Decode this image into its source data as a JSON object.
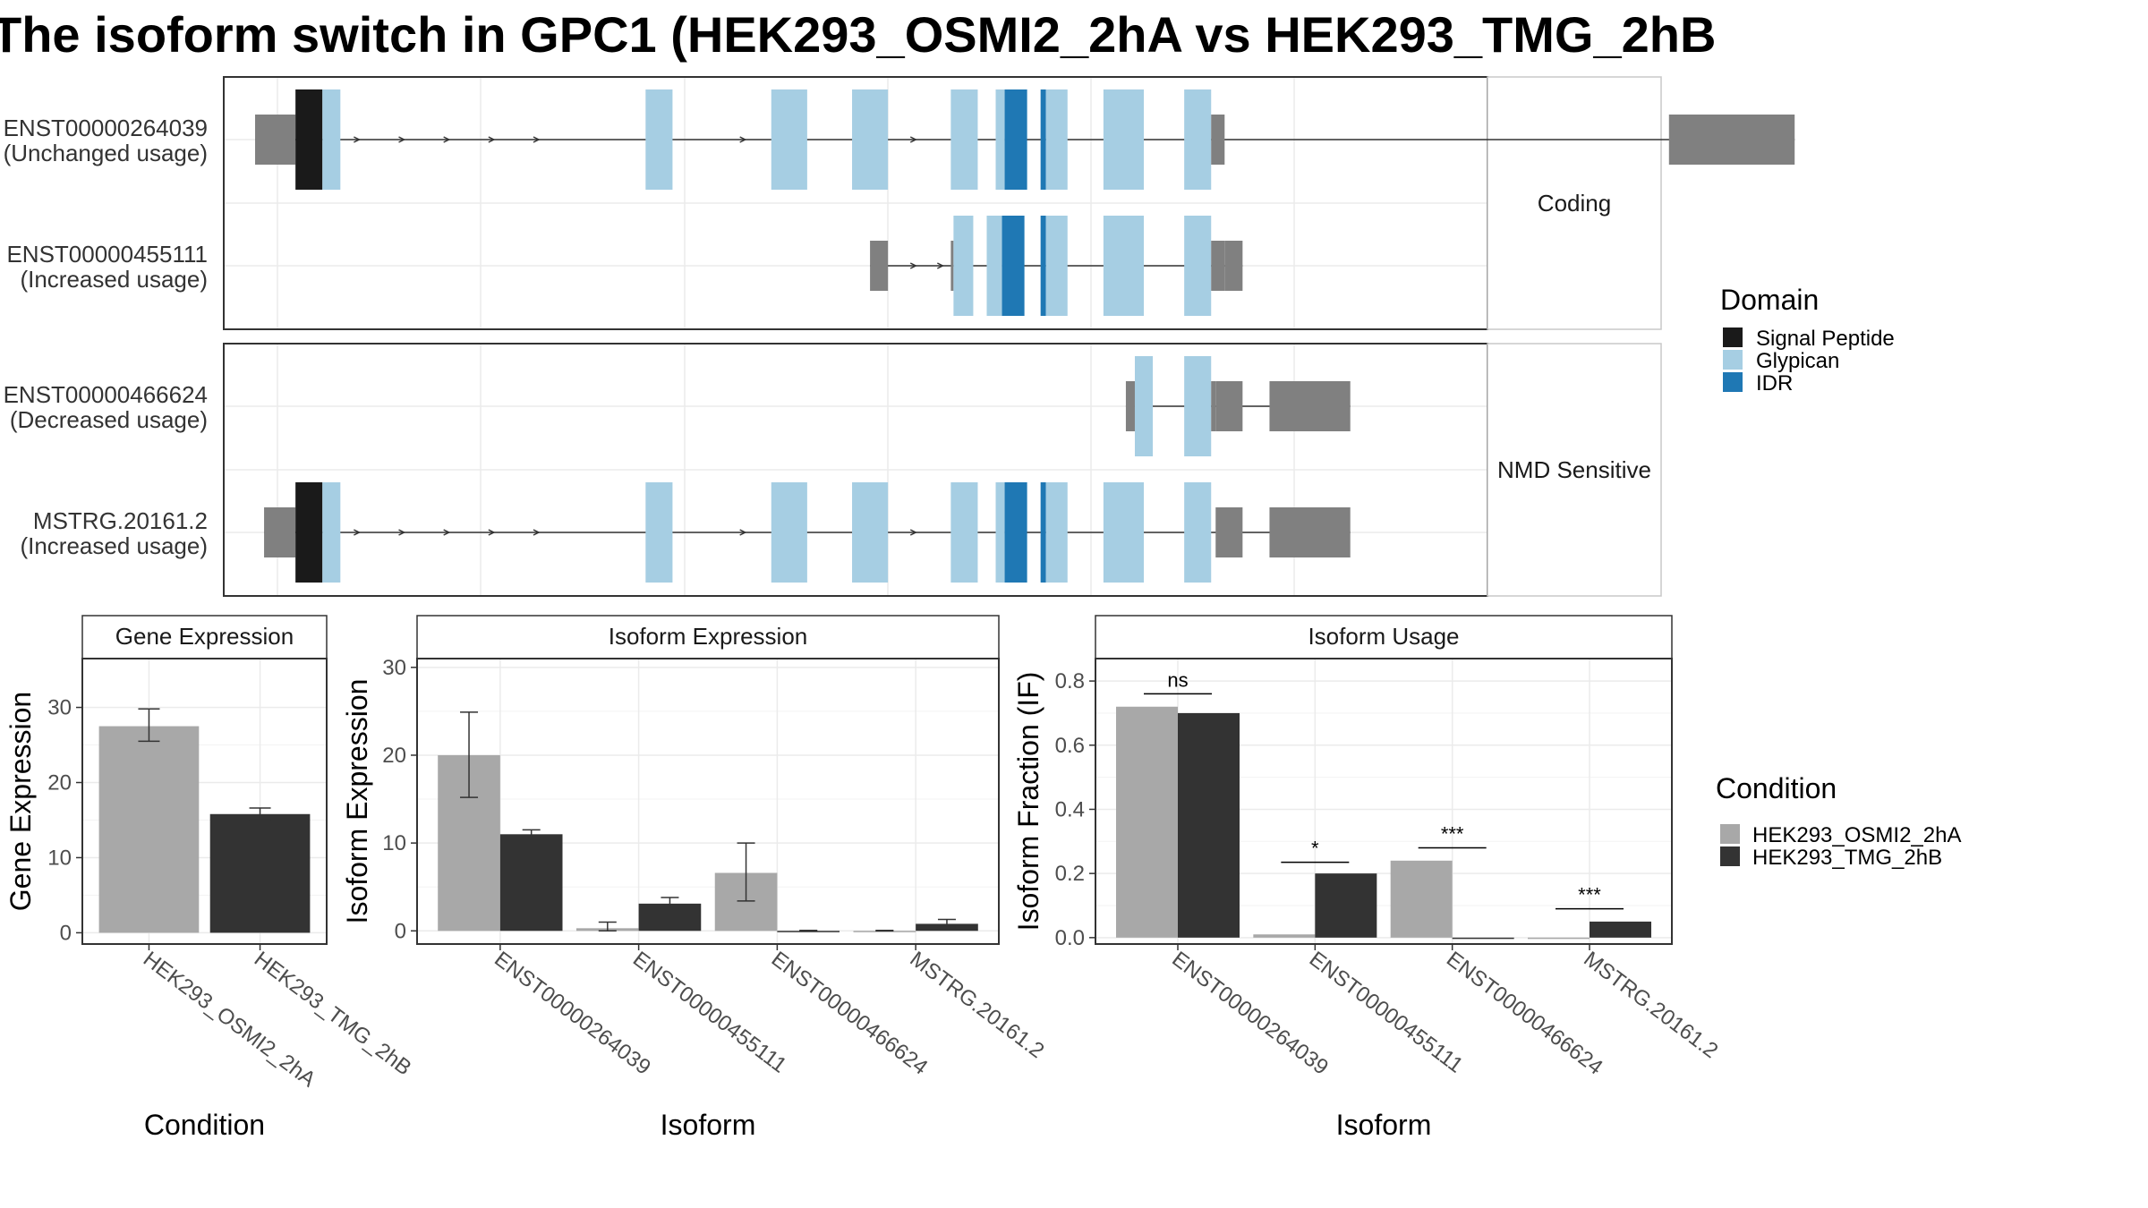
{
  "figure": {
    "title": "The isoform switch in GPC1 (HEK293_OSMI2_2hA vs HEK293_TMG_2hB"
  },
  "colors": {
    "utr": "#808080",
    "signal_peptide": "#1a1a1a",
    "glypican": "#a6cee3",
    "idr": "#1f78b4",
    "cond1": "#a8a8a8",
    "cond2": "#333333"
  },
  "structure": {
    "groups": [
      {
        "label": "Coding",
        "isoforms": [
          {
            "id": "ENST00000264039",
            "usage": "(Unchanged usage)",
            "utr": [
              [
                0.5,
                5.0
              ],
              [
                158.0,
                172.0
              ]
            ],
            "exons": [
              {
                "start": 5.0,
                "end": 8.0,
                "domain": "signal_peptide"
              },
              {
                "start": 8.0,
                "end": 10.0,
                "domain": "glypican"
              },
              {
                "start": 44.0,
                "end": 47.0,
                "domain": "glypican"
              },
              {
                "start": 58.0,
                "end": 62.0,
                "domain": "glypican"
              },
              {
                "start": 67.0,
                "end": 71.0,
                "domain": "glypican"
              },
              {
                "start": 78.0,
                "end": 81.0,
                "domain": "glypican"
              },
              {
                "start": 83.0,
                "end": 84.0,
                "domain": "glypican"
              },
              {
                "start": 84.0,
                "end": 86.5,
                "domain": "idr"
              },
              {
                "start": 88.0,
                "end": 88.6,
                "domain": "idr"
              },
              {
                "start": 88.6,
                "end": 91.0,
                "domain": "glypican"
              },
              {
                "start": 95.0,
                "end": 99.5,
                "domain": "glypican"
              },
              {
                "start": 104.0,
                "end": 107.0,
                "domain": "glypican"
              },
              {
                "start": 107.0,
                "end": 108.5,
                "domain": "utr"
              }
            ],
            "arrows": [
              12,
              17,
              22,
              27,
              32,
              46.5,
              55,
              74
            ]
          },
          {
            "id": "ENST00000455111",
            "usage": "(Increased usage)",
            "utr": [
              [
                108.5,
                110.5
              ]
            ],
            "exons": [
              {
                "start": 69.0,
                "end": 71.0,
                "domain": "utr"
              },
              {
                "start": 78.0,
                "end": 78.3,
                "domain": "utr"
              },
              {
                "start": 78.3,
                "end": 80.5,
                "domain": "glypican"
              },
              {
                "start": 82.0,
                "end": 83.7,
                "domain": "glypican"
              },
              {
                "start": 83.7,
                "end": 86.2,
                "domain": "idr"
              },
              {
                "start": 88.0,
                "end": 88.6,
                "domain": "idr"
              },
              {
                "start": 88.6,
                "end": 91.0,
                "domain": "glypican"
              },
              {
                "start": 95.0,
                "end": 99.5,
                "domain": "glypican"
              },
              {
                "start": 104.0,
                "end": 107.0,
                "domain": "glypican"
              },
              {
                "start": 107.0,
                "end": 108.5,
                "domain": "utr"
              }
            ],
            "arrows": [
              74,
              77
            ]
          }
        ]
      },
      {
        "label": "NMD Sensitive",
        "isoforms": [
          {
            "id": "ENST00000466624",
            "usage": "(Decreased usage)",
            "utr": [
              [
                97.5,
                98.5
              ],
              [
                107.5,
                110.5
              ],
              [
                113.5,
                122.5
              ]
            ],
            "exons": [
              {
                "start": 98.5,
                "end": 100.5,
                "domain": "glypican"
              },
              {
                "start": 104.0,
                "end": 107.0,
                "domain": "glypican"
              },
              {
                "start": 107.0,
                "end": 107.5,
                "domain": "utr"
              }
            ],
            "arrows": []
          },
          {
            "id": "MSTRG.20161.2",
            "usage": "(Increased usage)",
            "utr": [
              [
                1.5,
                5.0
              ],
              [
                107.5,
                110.5
              ],
              [
                113.5,
                122.5
              ]
            ],
            "exons": [
              {
                "start": 5.0,
                "end": 8.0,
                "domain": "signal_peptide"
              },
              {
                "start": 8.0,
                "end": 10.0,
                "domain": "glypican"
              },
              {
                "start": 44.0,
                "end": 47.0,
                "domain": "glypican"
              },
              {
                "start": 58.0,
                "end": 62.0,
                "domain": "glypican"
              },
              {
                "start": 67.0,
                "end": 71.0,
                "domain": "glypican"
              },
              {
                "start": 78.0,
                "end": 81.0,
                "domain": "glypican"
              },
              {
                "start": 83.0,
                "end": 84.0,
                "domain": "glypican"
              },
              {
                "start": 84.0,
                "end": 86.5,
                "domain": "idr"
              },
              {
                "start": 88.0,
                "end": 88.6,
                "domain": "idr"
              },
              {
                "start": 88.6,
                "end": 91.0,
                "domain": "glypican"
              },
              {
                "start": 95.0,
                "end": 99.5,
                "domain": "glypican"
              },
              {
                "start": 104.0,
                "end": 107.0,
                "domain": "glypican"
              }
            ],
            "arrows": [
              12,
              17,
              22,
              27,
              32,
              46.5,
              55,
              74
            ]
          }
        ]
      }
    ]
  },
  "legend_domain": {
    "title": "Domain",
    "items": [
      {
        "label": "Signal Peptide",
        "color": "#1a1a1a"
      },
      {
        "label": "Glypican",
        "color": "#a6cee3"
      },
      {
        "label": "IDR",
        "color": "#1f78b4"
      }
    ]
  },
  "legend_condition": {
    "title": "Condition",
    "items": [
      {
        "label": "HEK293_OSMI2_2hA",
        "color": "#a8a8a8"
      },
      {
        "label": "HEK293_TMG_2hB",
        "color": "#333333"
      }
    ]
  },
  "chart_data": [
    {
      "type": "bar",
      "title": "Gene Expression",
      "xlabel": "Condition",
      "ylabel": "Gene Expression",
      "categories": [
        "HEK293_OSMI2_2hA",
        "HEK293_TMG_2hB"
      ],
      "values": [
        27.5,
        15.8
      ],
      "errors": [
        [
          25.5,
          29.8
        ],
        [
          15.0,
          16.6
        ]
      ],
      "ylim": [
        -1.5,
        36.5
      ],
      "yticks": [
        0,
        10,
        20,
        30
      ],
      "grid": true
    },
    {
      "type": "bar",
      "title": "Isoform Expression",
      "xlabel": "Isoform",
      "ylabel": "Isoform Expression",
      "categories": [
        "ENST00000264039",
        "ENST00000455111",
        "ENST00000466624",
        "MSTRG.20161.2"
      ],
      "series": [
        {
          "name": "HEK293_OSMI2_2hA",
          "values": [
            20.0,
            0.3,
            6.6,
            0.0
          ],
          "errors": [
            [
              15.2,
              24.9
            ],
            [
              0.0,
              1.0
            ],
            [
              3.4,
              10.0
            ],
            [
              0.0,
              0.05
            ]
          ]
        },
        {
          "name": "HEK293_TMG_2hB",
          "values": [
            11.0,
            3.1,
            0.0,
            0.8
          ],
          "errors": [
            [
              10.6,
              11.5
            ],
            [
              2.5,
              3.8
            ],
            [
              0.0,
              0.05
            ],
            [
              0.4,
              1.3
            ]
          ]
        }
      ],
      "ylim": [
        -1.5,
        31.0
      ],
      "yticks": [
        0,
        10,
        20,
        30
      ],
      "grid": true
    },
    {
      "type": "bar",
      "title": "Isoform Usage",
      "xlabel": "Isoform",
      "ylabel": "Isoform Fraction (IF)",
      "categories": [
        "ENST00000264039",
        "ENST00000455111",
        "ENST00000466624",
        "MSTRG.20161.2"
      ],
      "series": [
        {
          "name": "HEK293_OSMI2_2hA",
          "values": [
            0.72,
            0.01,
            0.24,
            0.0
          ]
        },
        {
          "name": "HEK293_TMG_2hB",
          "values": [
            0.7,
            0.2,
            0.0,
            0.05
          ]
        }
      ],
      "significance": [
        {
          "label": "ns",
          "y": 0.76
        },
        {
          "label": "*",
          "y": 0.235
        },
        {
          "label": "***",
          "y": 0.28
        },
        {
          "label": "***",
          "y": 0.09
        }
      ],
      "ylim": [
        -0.02,
        0.87
      ],
      "yticks": [
        0.0,
        0.2,
        0.4,
        0.6,
        0.8
      ],
      "ytick_labels": [
        "0.0",
        "0.2",
        "0.4",
        "0.6",
        "0.8"
      ],
      "grid": true
    }
  ]
}
